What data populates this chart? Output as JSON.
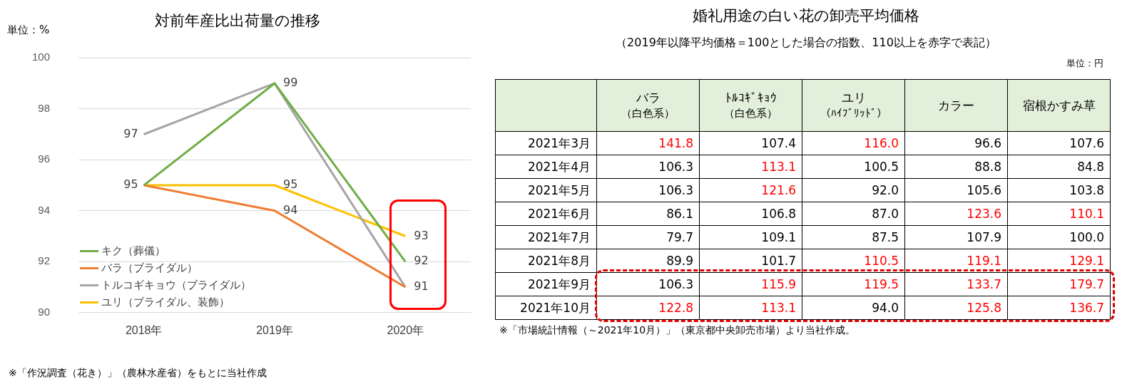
{
  "chart_data": [
    {
      "type": "line",
      "title": "対前年産比出荷量の推移",
      "ylabel": "単位：%",
      "categories": [
        "2018年",
        "2019年",
        "2020年"
      ],
      "series": [
        {
          "name": "キク（葬儀）",
          "color": "#70ad47",
          "values": [
            95,
            99,
            92
          ],
          "value_labels": [
            "95",
            "99",
            "92"
          ]
        },
        {
          "name": "バラ（ブライダル）",
          "color": "#ed7d31",
          "values": [
            95,
            94,
            91
          ],
          "value_labels": [
            null,
            "94",
            "91"
          ]
        },
        {
          "name": "トルコギキョウ（ブライダル）",
          "color": "#a5a5a5",
          "values": [
            97,
            99,
            91
          ],
          "value_labels": [
            "97",
            null,
            null
          ]
        },
        {
          "name": "ユリ（ブライダル、装飾）",
          "color": "#ffc000",
          "values": [
            95,
            95,
            93
          ],
          "value_labels": [
            null,
            "95",
            "93"
          ]
        }
      ],
      "ylim": [
        90,
        100
      ],
      "yticks": [
        90,
        92,
        94,
        96,
        98,
        100
      ],
      "grid": "y",
      "legend": "bottom left",
      "marker": "none",
      "line_style": "solid",
      "annotations": [
        "※「作況調査（花き）」（農林水産省）をもとに当社作成"
      ]
    },
    {
      "type": "heatmap",
      "title": "婚礼用途の白い花の卸売平均価格",
      "subtitle": "（2019年以降平均価格＝100とした場合の指数、110以上を赤字で表記）",
      "categories": [
        "バラ（白色系）",
        "ﾄﾙｺｷﾞｷｮｳ（白色系）",
        "ユリ（ﾊｲﾌﾞﾘｯﾄﾞ）",
        "カラー",
        "宿根かすみ草"
      ],
      "y_categories": [
        "2021年3月",
        "2021年4月",
        "2021年5月",
        "2021年6月",
        "2021年7月",
        "2021年8月",
        "2021年9月",
        "2021年10月"
      ],
      "cells": [
        [
          141.8,
          107.4,
          116.0,
          96.6,
          107.6
        ],
        [
          106.3,
          113.1,
          100.5,
          88.8,
          84.8
        ],
        [
          106.3,
          121.6,
          92.0,
          105.6,
          103.8
        ],
        [
          86.1,
          106.8,
          87.0,
          123.6,
          110.1
        ],
        [
          79.7,
          109.1,
          87.5,
          107.9,
          100.0
        ],
        [
          89.9,
          101.7,
          110.5,
          119.1,
          129.1
        ],
        [
          106.3,
          115.9,
          119.5,
          133.7,
          179.7
        ],
        [
          122.8,
          113.1,
          94.0,
          125.8,
          136.7
        ]
      ],
      "data_labels": true,
      "cell_labels": [
        [
          "141.8",
          "107.4",
          "116.0",
          "96.6",
          "107.6"
        ],
        [
          "106.3",
          "113.1",
          "100.5",
          "88.8",
          "84.8"
        ],
        [
          "106.3",
          "121.6",
          "92.0",
          "105.6",
          "103.8"
        ],
        [
          "86.1",
          "106.8",
          "87.0",
          "123.6",
          "110.1"
        ],
        [
          "79.7",
          "109.1",
          "87.5",
          "107.9",
          "100.0"
        ],
        [
          "89.9",
          "101.7",
          "110.5",
          "119.1",
          "129.1"
        ],
        [
          "106.3",
          "115.9",
          "119.5",
          "133.7",
          "179.7"
        ],
        [
          "122.8",
          "113.1",
          "94.0",
          "125.8",
          "136.7"
        ]
      ],
      "colors": [
        [
          "#ff0000",
          "#000000",
          "#ff0000",
          "#000000",
          "#000000"
        ],
        [
          "#000000",
          "#ff0000",
          "#000000",
          "#000000",
          "#000000"
        ],
        [
          "#000000",
          "#ff0000",
          "#000000",
          "#000000",
          "#000000"
        ],
        [
          "#000000",
          "#000000",
          "#000000",
          "#ff0000",
          "#ff0000"
        ],
        [
          "#000000",
          "#000000",
          "#000000",
          "#000000",
          "#000000"
        ],
        [
          "#000000",
          "#000000",
          "#ff0000",
          "#ff0000",
          "#ff0000"
        ],
        [
          "#000000",
          "#ff0000",
          "#ff0000",
          "#ff0000",
          "#ff0000"
        ],
        [
          "#ff0000",
          "#ff0000",
          "#000000",
          "#ff0000",
          "#ff0000"
        ]
      ],
      "annotations": [
        "単位：円",
        "※「市場統計情報（～2021年10月）」（東京都中央卸売市場）より当社作成。"
      ]
    }
  ]
}
